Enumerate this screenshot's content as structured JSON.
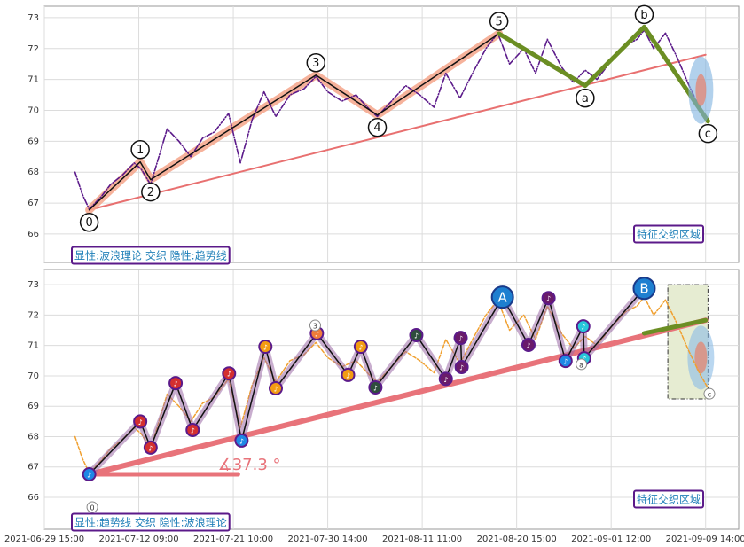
{
  "chart_data": [
    {
      "type": "line",
      "ylim": [
        65.08,
        73.37
      ],
      "yticks": [
        66,
        67,
        68,
        69,
        70,
        71,
        72,
        73
      ],
      "xlim": [
        0,
        294
      ],
      "grid": true,
      "series": [
        {
          "color": "#5b1a8a",
          "style": "dashdot",
          "x": [
            13,
            16,
            19,
            24,
            28,
            33,
            38,
            41,
            45,
            52,
            57,
            62,
            67,
            72,
            78,
            83,
            88,
            93,
            98,
            104,
            110,
            115,
            120,
            126,
            132,
            138,
            141,
            147,
            153,
            159,
            165,
            170,
            176,
            182,
            187,
            192,
            197,
            203,
            208,
            213,
            219,
            224,
            229,
            234,
            240,
            246,
            251,
            254,
            258,
            263,
            268,
            273,
            278,
            281
          ],
          "values": [
            68.0,
            67.3,
            66.8,
            67.2,
            67.6,
            67.9,
            68.3,
            68.1,
            67.6,
            69.4,
            69.0,
            68.5,
            69.1,
            69.3,
            69.9,
            68.3,
            69.7,
            70.6,
            69.8,
            70.5,
            70.7,
            71.1,
            70.6,
            70.3,
            70.5,
            70.0,
            69.8,
            70.3,
            70.8,
            70.5,
            70.1,
            71.2,
            70.4,
            71.3,
            72.0,
            72.5,
            71.5,
            72.0,
            71.2,
            72.3,
            71.4,
            70.9,
            71.3,
            71.0,
            71.6,
            72.1,
            72.3,
            72.6,
            72.0,
            72.5,
            71.7,
            70.8,
            70.0,
            69.6
          ]
        }
      ],
      "waves": {
        "x": [
          19,
          40.6,
          45,
          115,
          141,
          192.5,
          229,
          254,
          281
        ],
        "values": [
          66.78,
          68.33,
          67.76,
          71.14,
          69.85,
          72.48,
          70.8,
          72.7,
          69.65
        ],
        "labels": [
          "0",
          "1",
          "2",
          "3",
          "4",
          "5",
          "a",
          "b",
          "c"
        ],
        "impulse_color": "#f4a58a",
        "correction_color": "#6b8e23"
      },
      "trendline": {
        "x": [
          19,
          280
        ],
        "values": [
          66.78,
          71.8
        ],
        "color": "#e87070"
      },
      "annotations": [
        "显性:波浪理论 交织 隐性:趋势线",
        "特征交织区域"
      ]
    },
    {
      "type": "line",
      "ylim": [
        64.95,
        73.5
      ],
      "yticks": [
        66,
        67,
        68,
        69,
        70,
        71,
        72,
        73
      ],
      "xlim": [
        0,
        294
      ],
      "grid": true,
      "xticks": [
        {
          "value": 0,
          "label": "2021-06-29 15:00"
        },
        {
          "value": 40,
          "label": "2021-07-12 09:00"
        },
        {
          "value": 80,
          "label": "2021-07-21 10:00"
        },
        {
          "value": 120,
          "label": "2021-07-30 14:00"
        },
        {
          "value": 160,
          "label": "2021-08-11 11:00"
        },
        {
          "value": 200,
          "label": "2021-08-20 15:00"
        },
        {
          "value": 240,
          "label": "2021-09-01 12:00"
        },
        {
          "value": 280,
          "label": "2021-09-09 14:00"
        }
      ],
      "series": [
        {
          "color": "#f0a030",
          "style": "dashed",
          "x": [
            13,
            16,
            19,
            24,
            28,
            33,
            38,
            41,
            45,
            52,
            57,
            62,
            67,
            72,
            78,
            83,
            88,
            93,
            98,
            104,
            110,
            115,
            120,
            126,
            132,
            138,
            141,
            147,
            153,
            159,
            165,
            170,
            176,
            182,
            187,
            192,
            197,
            203,
            208,
            213,
            219,
            224,
            229,
            234,
            240,
            246,
            251,
            254,
            258,
            263,
            268,
            273,
            278,
            281
          ],
          "values": [
            68.0,
            67.3,
            66.8,
            67.2,
            67.6,
            67.9,
            68.3,
            68.1,
            67.6,
            69.4,
            69.0,
            68.5,
            69.1,
            69.3,
            69.9,
            68.3,
            69.7,
            70.6,
            69.8,
            70.5,
            70.7,
            71.1,
            70.6,
            70.3,
            70.5,
            70.0,
            69.8,
            70.3,
            70.8,
            70.5,
            70.1,
            71.2,
            70.4,
            71.3,
            72.0,
            72.5,
            71.5,
            72.0,
            71.2,
            72.3,
            71.4,
            70.9,
            71.3,
            71.0,
            71.6,
            72.1,
            72.3,
            72.6,
            72.0,
            72.5,
            71.7,
            70.8,
            70.0,
            69.6
          ]
        }
      ],
      "zigzag": {
        "x": [
          19,
          40.6,
          45,
          55.6,
          62.8,
          78.2,
          83.5,
          93.6,
          98,
          115.4,
          128.6,
          134,
          140.2,
          157.5,
          170,
          176.3,
          176.7,
          194,
          205,
          213.5,
          220.7,
          228.2,
          228.6,
          254
        ],
        "values": [
          66.76,
          68.5,
          67.64,
          69.76,
          68.22,
          70.08,
          67.87,
          70.96,
          69.59,
          71.4,
          70.03,
          70.96,
          69.62,
          71.34,
          69.9,
          71.25,
          70.29,
          72.59,
          71.02,
          72.56,
          70.49,
          71.63,
          70.58,
          72.88
        ],
        "point_labels": [
          null,
          null,
          null,
          null,
          null,
          null,
          null,
          null,
          null,
          null,
          null,
          null,
          null,
          null,
          null,
          null,
          null,
          "A",
          null,
          null,
          null,
          null,
          null,
          "B"
        ],
        "marker_colors": [
          "#1e88e5",
          "#d32f2f",
          "#d32f2f",
          "#d32f2f",
          "#d32f2f",
          "#d32f2f",
          "#1e88e5",
          "#f39c12",
          "#f39c12",
          "#f07c3a",
          "#f39c12",
          "#f39c12",
          "#2e4d3d",
          "#2e4d3d",
          "#6a1b6a",
          "#6a1b6a",
          "#6a1b6a",
          "#1e7fd0",
          "#6a1b6a",
          "#6a1b6a",
          "#1e88e5",
          "#26c6da",
          "#26c6da",
          "#1e7fd0"
        ],
        "marker_symbol": "♪"
      },
      "trendline": {
        "x": [
          19,
          280
        ],
        "values": [
          66.76,
          71.83
        ],
        "color": "#e8737a"
      },
      "baseline": {
        "x": [
          19,
          82
        ],
        "values": [
          66.76,
          66.76
        ]
      },
      "green_segment": {
        "x": [
          254,
          280
        ],
        "values": [
          71.4,
          71.83
        ],
        "color": "#6b8e23"
      },
      "zone": {
        "x": [
          264,
          281
        ],
        "values": [
          69.24,
          73
        ]
      },
      "small_labels": {
        "x": [
          20.3,
          114.7,
          227.4,
          281.6
        ],
        "values": [
          65.68,
          71.66,
          70.38,
          69.41
        ],
        "labels": [
          "0",
          "3",
          "a",
          "c"
        ]
      },
      "angle_label": "∡37.3 °",
      "annotations": [
        "显性:趋势线 交织 隐性:波浪理论",
        "特征交织区域"
      ]
    }
  ]
}
